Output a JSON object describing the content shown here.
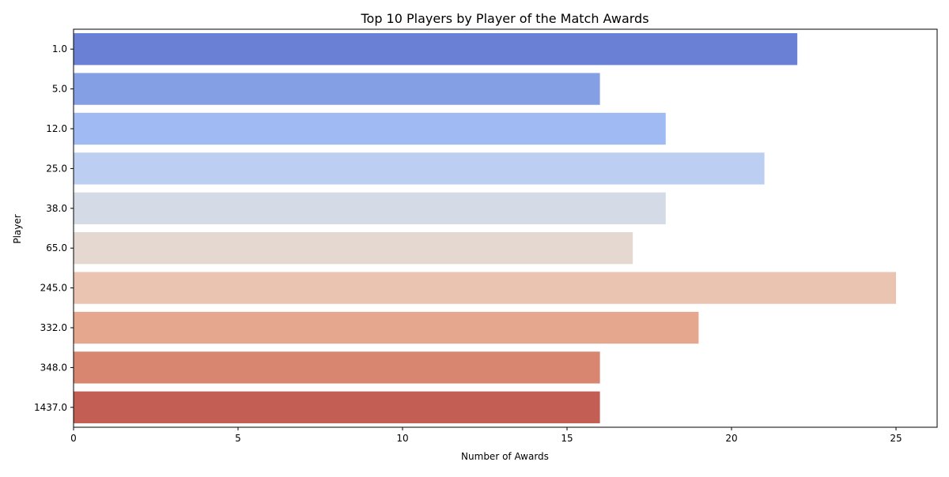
{
  "chart_data": {
    "type": "bar",
    "orientation": "horizontal",
    "title": "Top 10 Players by Player of the Match Awards",
    "xlabel": "Number of Awards",
    "ylabel": "Player",
    "xlim": [
      0,
      26.25
    ],
    "xticks": [
      "0",
      "5",
      "10",
      "15",
      "20",
      "25"
    ],
    "xtick_values": [
      0,
      5,
      10,
      15,
      20,
      25
    ],
    "categories": [
      "1.0",
      "5.0",
      "12.0",
      "25.0",
      "38.0",
      "65.0",
      "245.0",
      "332.0",
      "348.0",
      "1437.0"
    ],
    "values": [
      22,
      16,
      18,
      21,
      18,
      17,
      25,
      19,
      16,
      16
    ],
    "colors": [
      "#6a80d4",
      "#859fe5",
      "#a0baf4",
      "#bccff2",
      "#d4dae6",
      "#e4d8d0",
      "#eac4b0",
      "#e5a78e",
      "#d88670",
      "#c25e53"
    ],
    "grid": false,
    "legend": "none"
  }
}
